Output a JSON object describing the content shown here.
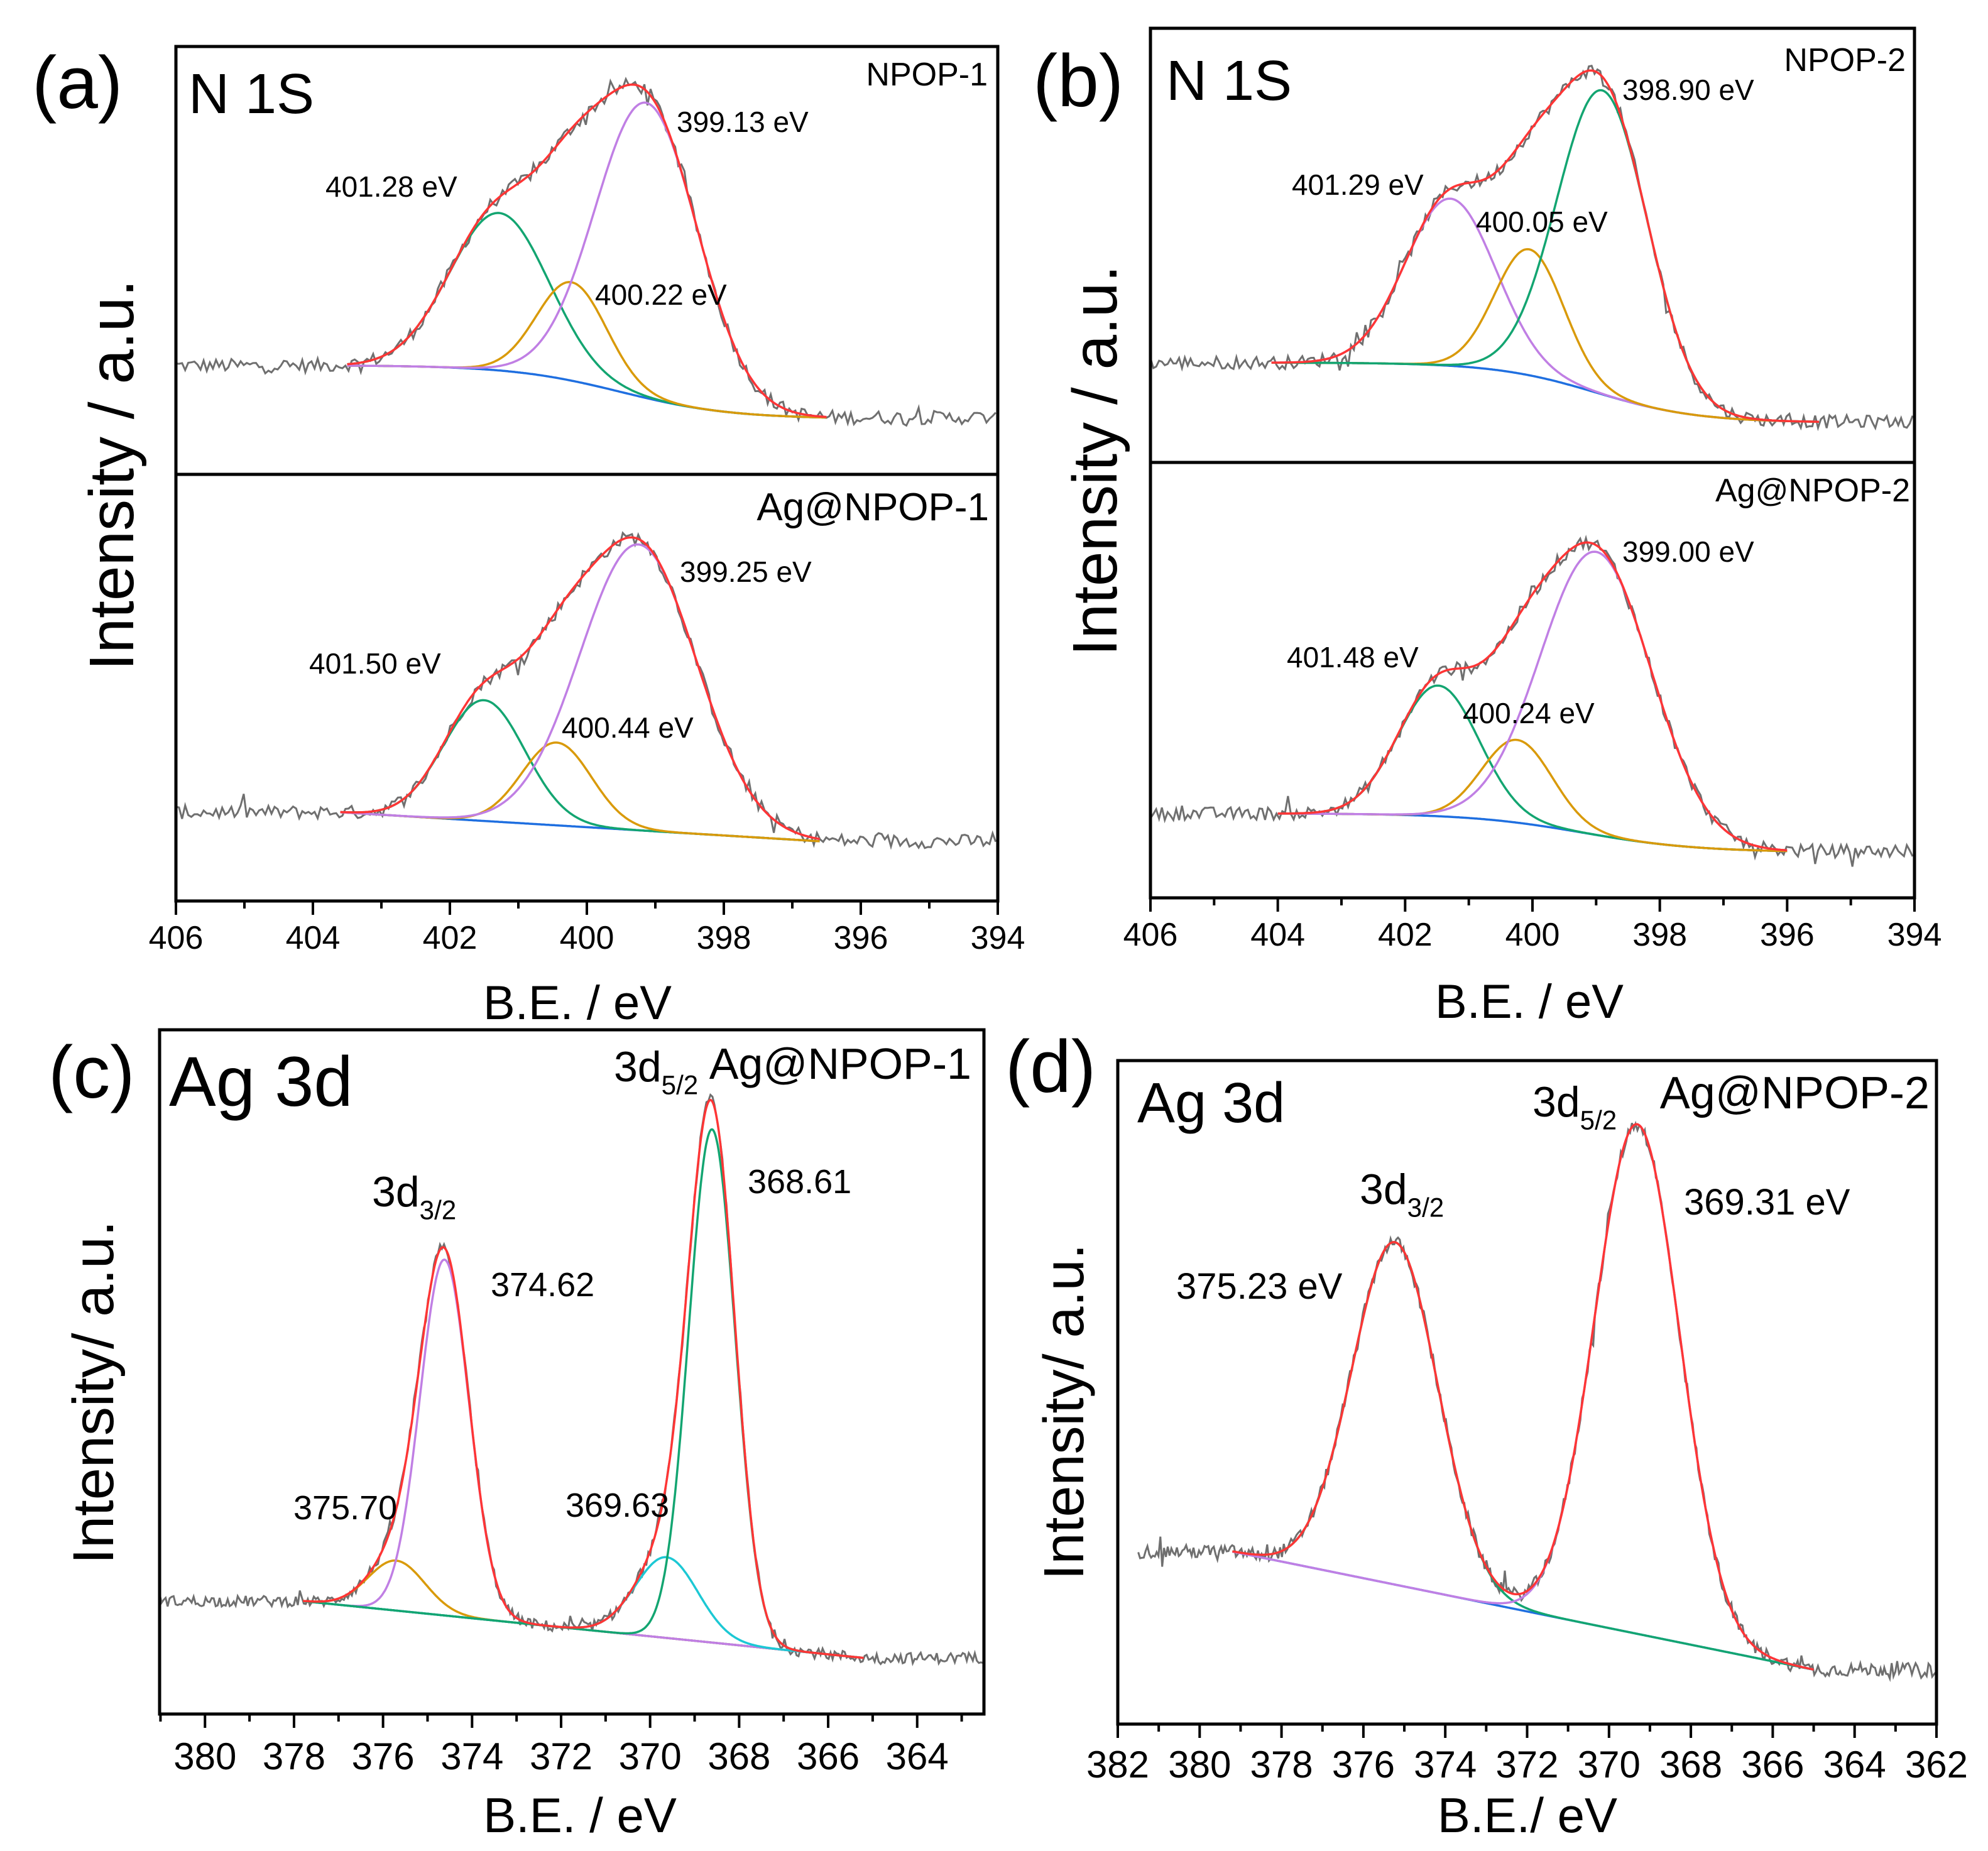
{
  "chart_data": [
    {
      "type": "line",
      "panel_label": "(a)",
      "title": "N 1S",
      "xlabel": "B.E. / eV",
      "ylabel": "Intensity / a.u.",
      "xlim": [
        406,
        394
      ],
      "xticks": [
        406,
        404,
        402,
        400,
        398,
        396,
        394
      ],
      "ylim": [
        0,
        100
      ],
      "grid": false,
      "subplots": [
        {
          "sample": "NPOP-1",
          "raw_range": [
            406,
            394
          ],
          "fit_range": [
            403.5,
            396.5
          ],
          "noise": 1.6,
          "baseline": {
            "type": "sigmoid",
            "high": 25.5,
            "low": 13,
            "center": 399.5,
            "width": 0.8
          },
          "components": [
            {
              "center": 401.28,
              "amplitude": 36.8,
              "fwhm": 1.7,
              "color": "#13a571",
              "label": "401.28 eV"
            },
            {
              "center": 400.22,
              "amplitude": 23,
              "fwhm": 1.2,
              "color": "#d99a0a",
              "label": "400.22 eV"
            },
            {
              "center": 399.13,
              "amplitude": 69,
              "fwhm": 1.75,
              "color": "#c07fe4",
              "label": "399.13 eV"
            }
          ]
        },
        {
          "sample": "Ag@NPOP-1",
          "raw_range": [
            406,
            394
          ],
          "fit_range": [
            403.6,
            396.6
          ],
          "noise": 1.6,
          "baseline": {
            "type": "linear",
            "high": 20.8,
            "low": 14
          },
          "components": [
            {
              "center": 401.5,
              "amplitude": 28.3,
              "fwhm": 1.4,
              "color": "#13a571",
              "label": "401.50 eV"
            },
            {
              "center": 400.44,
              "amplitude": 19.4,
              "fwhm": 1.2,
              "color": "#d99a0a",
              "label": "400.44 eV"
            },
            {
              "center": 399.25,
              "amplitude": 67,
              "fwhm": 2.0,
              "color": "#c07fe4",
              "label": "399.25 eV"
            }
          ]
        }
      ]
    },
    {
      "type": "line",
      "panel_label": "(b)",
      "title": "N 1S",
      "xlabel": "B.E. / eV",
      "ylabel": "Intensity / a.u.",
      "xlim": [
        406,
        394
      ],
      "xticks": [
        406,
        404,
        402,
        400,
        398,
        396,
        394
      ],
      "ylim": [
        0,
        100
      ],
      "grid": false,
      "subplots": [
        {
          "sample": "NPOP-2",
          "raw_range": [
            406,
            394
          ],
          "fit_range": [
            404.1,
            395.5
          ],
          "noise": 1.5,
          "baseline": {
            "type": "sigmoid",
            "high": 23,
            "low": 9.2,
            "center": 399.0,
            "width": 0.8
          },
          "components": [
            {
              "center": 401.29,
              "amplitude": 38.5,
              "fwhm": 1.67,
              "color": "#c07fe4",
              "label": "401.29 eV"
            },
            {
              "center": 400.05,
              "amplitude": 29,
              "fwhm": 1.27,
              "color": "#d99a0a",
              "label": "400.05 eV"
            },
            {
              "center": 398.9,
              "amplitude": 70,
              "fwhm": 1.67,
              "color": "#13a571",
              "label": "398.90 eV"
            }
          ]
        },
        {
          "sample": "Ag@NPOP-2",
          "raw_range": [
            406,
            394
          ],
          "fit_range": [
            404.0,
            396.0
          ],
          "noise": 1.5,
          "baseline": {
            "type": "sigmoid",
            "high": 19.4,
            "low": 10.5,
            "center": 399.2,
            "width": 0.9
          },
          "components": [
            {
              "center": 401.48,
              "amplitude": 30,
              "fwhm": 1.5,
              "color": "#13a571",
              "label": "401.48 eV"
            },
            {
              "center": 400.24,
              "amplitude": 19,
              "fwhm": 1.3,
              "color": "#d99a0a",
              "label": "400.24 eV"
            },
            {
              "center": 399.0,
              "amplitude": 65,
              "fwhm": 2.05,
              "color": "#c07fe4",
              "label": "399.00 eV"
            }
          ]
        }
      ]
    },
    {
      "type": "line",
      "panel_label": "(c)",
      "title": "Ag 3d",
      "xlabel": "B.E. / eV",
      "ylabel": "Intensity/ a.u.",
      "xlim": [
        381.02,
        362.5
      ],
      "xticks": [
        380,
        378,
        376,
        374,
        372,
        370,
        368,
        366,
        364
      ],
      "ylim": [
        0,
        100
      ],
      "grid": false,
      "peak_groups": [
        {
          "main": "3d",
          "sub": "3/2"
        },
        {
          "main": "3d",
          "sub": "5/2"
        }
      ],
      "subplots": [
        {
          "sample": "Ag@NPOP-1",
          "raw_range": [
            381.02,
            362.5
          ],
          "fit_range": [
            377.8,
            365.2
          ],
          "noise": 0.8,
          "baseline": {
            "type": "linear",
            "high": 16.5,
            "low": 8.2
          },
          "components": [
            {
              "center": 375.7,
              "amplitude": 7.3,
              "fwhm": 1.5,
              "color": "#d99a0a",
              "label": "375.70"
            },
            {
              "center": 374.62,
              "amplitude": 52,
              "fwhm": 1.3,
              "color": "#c07fe4",
              "label": "374.62"
            },
            {
              "center": 369.63,
              "amplitude": 11.8,
              "fwhm": 1.66,
              "color": "#1cc8d4",
              "label": "369.63"
            },
            {
              "center": 368.61,
              "amplitude": 75,
              "fwhm": 1.23,
              "color": "#13a571",
              "label": "368.61"
            }
          ]
        }
      ]
    },
    {
      "type": "line",
      "panel_label": "(d)",
      "title": "Ag 3d",
      "xlabel": "B.E./ eV",
      "ylabel": "Intensity/ a.u.",
      "xlim": [
        382,
        362
      ],
      "xticks": [
        382,
        380,
        378,
        376,
        374,
        372,
        370,
        368,
        366,
        364,
        362
      ],
      "ylim": [
        0,
        100
      ],
      "grid": false,
      "peak_groups": [
        {
          "main": "3d",
          "sub": "3/2"
        },
        {
          "main": "3d",
          "sub": "5/2"
        }
      ],
      "subplots": [
        {
          "sample": "Ag@NPOP-2",
          "raw_range": [
            381.5,
            362
          ],
          "fit_range": [
            379.2,
            365.0
          ],
          "noise": 1.0,
          "baseline": {
            "type": "linear",
            "high": 26,
            "low": 8.2
          },
          "components": [
            {
              "center": 375.23,
              "amplitude": 51.6,
              "fwhm": 2.47,
              "color": "#13a571",
              "label": "375.23 eV"
            },
            {
              "center": 369.31,
              "amplitude": 76.8,
              "fwhm": 2.44,
              "color": "#c07fe4",
              "label": "369.31 eV"
            }
          ]
        }
      ]
    }
  ],
  "colors": {
    "raw": "#6f6f6f",
    "envelope": "#ff3535",
    "background": "#1f6fe0",
    "frame": "#000000"
  }
}
